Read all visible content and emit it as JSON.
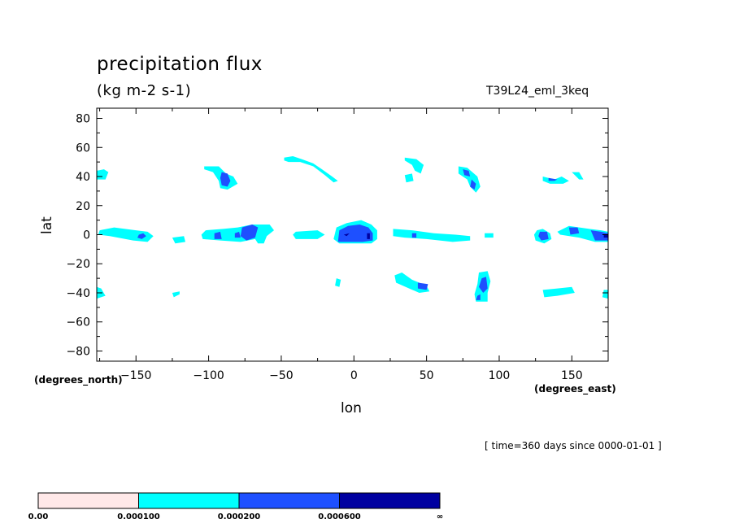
{
  "chart_data": {
    "type": "heatmap",
    "title": "precipitation flux",
    "units": "(kg m-2 s-1)",
    "experiment": "T39L24_eml_3keq",
    "xlabel": "lon",
    "ylabel": "lat",
    "x_unit": "(degrees_east)",
    "y_unit": "(degrees_north)",
    "time_text": "[ time=360 days since 0000-01-01 ]",
    "xlim": [
      -177,
      175
    ],
    "ylim": [
      -87,
      87
    ],
    "x_ticks": [
      -150,
      -100,
      -50,
      0,
      50,
      100,
      150
    ],
    "x_tick_labels": [
      "−150",
      "−100",
      "−50",
      "0",
      "50",
      "100",
      "150"
    ],
    "y_ticks": [
      80,
      60,
      40,
      20,
      0,
      -20,
      -40,
      -60,
      -80
    ],
    "y_tick_labels": [
      "80",
      "60",
      "40",
      "20",
      "0",
      "−20",
      "−40",
      "−60",
      "−80"
    ],
    "levels": [
      "0.00",
      "0.000100",
      "0.000200",
      "0.000600",
      "∞"
    ],
    "level_colors": [
      "#ffe8e8",
      "#00ffff",
      "#1e50ff",
      "#0000a0"
    ],
    "regions": [
      {
        "level": 1,
        "pts": [
          [
            -177,
            44
          ],
          [
            -172,
            45
          ],
          [
            -169,
            43
          ],
          [
            -171,
            38
          ],
          [
            -177,
            38
          ]
        ]
      },
      {
        "level": 1,
        "pts": [
          [
            -175,
            3
          ],
          [
            -165,
            5
          ],
          [
            -150,
            3
          ],
          [
            -142,
            2
          ],
          [
            -138,
            -1
          ],
          [
            -142,
            -5
          ],
          [
            -152,
            -4
          ],
          [
            -168,
            -1
          ],
          [
            -176,
            0
          ]
        ]
      },
      {
        "level": 2,
        "pts": [
          [
            -148,
            0
          ],
          [
            -145,
            1
          ],
          [
            -143,
            -1
          ],
          [
            -146,
            -3
          ],
          [
            -149,
            -2
          ]
        ]
      },
      {
        "level": 1,
        "pts": [
          [
            -125,
            -2
          ],
          [
            -117,
            -1
          ],
          [
            -116,
            -5
          ],
          [
            -123,
            -6
          ]
        ]
      },
      {
        "level": 1,
        "pts": [
          [
            -102,
            3
          ],
          [
            -90,
            4
          ],
          [
            -80,
            5
          ],
          [
            -70,
            7
          ],
          [
            -58,
            7
          ],
          [
            -55,
            3
          ],
          [
            -60,
            -1
          ],
          [
            -62,
            -6
          ],
          [
            -66,
            -6
          ],
          [
            -68,
            -3
          ],
          [
            -78,
            -5
          ],
          [
            -92,
            -4
          ],
          [
            -104,
            -3
          ],
          [
            -105,
            0
          ]
        ]
      },
      {
        "level": 2,
        "pts": [
          [
            -96,
            1
          ],
          [
            -92,
            2
          ],
          [
            -91,
            -3
          ],
          [
            -96,
            -3
          ]
        ]
      },
      {
        "level": 2,
        "pts": [
          [
            -82,
            1
          ],
          [
            -79,
            2
          ],
          [
            -78,
            -2
          ],
          [
            -82,
            -2
          ]
        ]
      },
      {
        "level": 2,
        "pts": [
          [
            -77,
            5
          ],
          [
            -70,
            7
          ],
          [
            -66,
            5
          ],
          [
            -68,
            -2
          ],
          [
            -74,
            -4
          ],
          [
            -78,
            -1
          ]
        ]
      },
      {
        "level": 1,
        "pts": [
          [
            -40,
            2
          ],
          [
            -25,
            3
          ],
          [
            -20,
            0
          ],
          [
            -25,
            -3
          ],
          [
            -40,
            -3
          ],
          [
            -42,
            0
          ]
        ]
      },
      {
        "level": 1,
        "pts": [
          [
            -103,
            47
          ],
          [
            -93,
            47
          ],
          [
            -88,
            42
          ],
          [
            -83,
            40
          ],
          [
            -80,
            35
          ],
          [
            -87,
            31
          ],
          [
            -92,
            32
          ],
          [
            -93,
            37
          ],
          [
            -97,
            43
          ],
          [
            -103,
            45
          ]
        ]
      },
      {
        "level": 2,
        "pts": [
          [
            -91,
            43
          ],
          [
            -87,
            42
          ],
          [
            -85,
            37
          ],
          [
            -87,
            33
          ],
          [
            -91,
            34
          ],
          [
            -92,
            39
          ]
        ]
      },
      {
        "level": 1,
        "pts": [
          [
            -48,
            53
          ],
          [
            -42,
            54
          ],
          [
            -36,
            52
          ],
          [
            -28,
            49
          ],
          [
            -22,
            45
          ],
          [
            -15,
            40
          ],
          [
            -11,
            37
          ],
          [
            -14,
            36
          ],
          [
            -20,
            41
          ],
          [
            -28,
            47
          ],
          [
            -37,
            50
          ],
          [
            -45,
            50
          ],
          [
            -48,
            51
          ]
        ]
      },
      {
        "level": 1,
        "pts": [
          [
            -12,
            -30
          ],
          [
            -9,
            -31
          ],
          [
            -10,
            -36
          ],
          [
            -13,
            -35
          ]
        ]
      },
      {
        "level": 1,
        "pts": [
          [
            -12,
            5
          ],
          [
            -5,
            8
          ],
          [
            5,
            10
          ],
          [
            12,
            7
          ],
          [
            16,
            3
          ],
          [
            16,
            -3
          ],
          [
            12,
            -6
          ],
          [
            0,
            -6
          ],
          [
            -10,
            -6
          ],
          [
            -14,
            -3
          ]
        ]
      },
      {
        "level": 2,
        "pts": [
          [
            -10,
            3
          ],
          [
            -4,
            6
          ],
          [
            4,
            7
          ],
          [
            10,
            5
          ],
          [
            13,
            1
          ],
          [
            13,
            -4
          ],
          [
            6,
            -5
          ],
          [
            -4,
            -5
          ],
          [
            -11,
            -5
          ]
        ]
      },
      {
        "level": 3,
        "pts": [
          [
            -7,
            0
          ],
          [
            -3,
            1
          ],
          [
            -5,
            -1
          ]
        ]
      },
      {
        "level": 3,
        "pts": [
          [
            9,
            1
          ],
          [
            11,
            1
          ],
          [
            11,
            -3
          ],
          [
            9,
            -3
          ]
        ]
      },
      {
        "level": 1,
        "pts": [
          [
            27,
            4
          ],
          [
            40,
            3
          ],
          [
            55,
            1
          ],
          [
            70,
            0
          ],
          [
            80,
            -1
          ],
          [
            80,
            -4
          ],
          [
            68,
            -5
          ],
          [
            50,
            -3
          ],
          [
            35,
            -2
          ],
          [
            27,
            -1
          ]
        ]
      },
      {
        "level": 2,
        "pts": [
          [
            40,
            1
          ],
          [
            43,
            1
          ],
          [
            43,
            -2
          ],
          [
            40,
            -2
          ]
        ]
      },
      {
        "level": 1,
        "pts": [
          [
            90,
            1
          ],
          [
            96,
            1
          ],
          [
            96,
            -2
          ],
          [
            90,
            -2
          ]
        ]
      },
      {
        "level": 1,
        "pts": [
          [
            126,
            3
          ],
          [
            130,
            4
          ],
          [
            135,
            1
          ],
          [
            136,
            -3
          ],
          [
            131,
            -6
          ],
          [
            125,
            -4
          ],
          [
            124,
            0
          ]
        ]
      },
      {
        "level": 2,
        "pts": [
          [
            128,
            2
          ],
          [
            133,
            2
          ],
          [
            134,
            -3
          ],
          [
            129,
            -4
          ],
          [
            127,
            -1
          ]
        ]
      },
      {
        "level": 1,
        "pts": [
          [
            140,
            2
          ],
          [
            148,
            6
          ],
          [
            162,
            4
          ],
          [
            170,
            3
          ],
          [
            175,
            2
          ],
          [
            175,
            -5
          ],
          [
            166,
            -5
          ],
          [
            155,
            -2
          ],
          [
            142,
            0
          ]
        ]
      },
      {
        "level": 2,
        "pts": [
          [
            148,
            5
          ],
          [
            154,
            5
          ],
          [
            155,
            1
          ],
          [
            149,
            0
          ]
        ]
      },
      {
        "level": 2,
        "pts": [
          [
            163,
            3
          ],
          [
            170,
            2
          ],
          [
            175,
            1
          ],
          [
            175,
            -4
          ],
          [
            166,
            -4
          ]
        ]
      },
      {
        "level": 3,
        "pts": [
          [
            172,
            0
          ],
          [
            175,
            0
          ],
          [
            175,
            -2
          ],
          [
            172,
            -2
          ]
        ]
      },
      {
        "level": 1,
        "pts": [
          [
            35,
            53
          ],
          [
            43,
            52
          ],
          [
            48,
            48
          ],
          [
            46,
            42
          ],
          [
            42,
            44
          ],
          [
            40,
            48
          ],
          [
            35,
            51
          ]
        ]
      },
      {
        "level": 1,
        "pts": [
          [
            35,
            41
          ],
          [
            40,
            42
          ],
          [
            41,
            37
          ],
          [
            36,
            36
          ]
        ]
      },
      {
        "level": 1,
        "pts": [
          [
            72,
            47
          ],
          [
            78,
            46
          ],
          [
            85,
            40
          ],
          [
            87,
            33
          ],
          [
            84,
            29
          ],
          [
            80,
            33
          ],
          [
            78,
            38
          ],
          [
            72,
            42
          ]
        ]
      },
      {
        "level": 2,
        "pts": [
          [
            75,
            45
          ],
          [
            79,
            44
          ],
          [
            80,
            40
          ],
          [
            76,
            41
          ]
        ]
      },
      {
        "level": 2,
        "pts": [
          [
            81,
            38
          ],
          [
            84,
            35
          ],
          [
            83,
            31
          ],
          [
            80,
            33
          ]
        ]
      },
      {
        "level": 1,
        "pts": [
          [
            130,
            40
          ],
          [
            138,
            38
          ],
          [
            143,
            40
          ],
          [
            148,
            37
          ],
          [
            144,
            35
          ],
          [
            135,
            35
          ],
          [
            130,
            37
          ]
        ]
      },
      {
        "level": 1,
        "pts": [
          [
            150,
            43
          ],
          [
            155,
            43
          ],
          [
            158,
            38
          ],
          [
            155,
            38
          ]
        ]
      },
      {
        "level": 2,
        "pts": [
          [
            134,
            39
          ],
          [
            140,
            38
          ],
          [
            138,
            37
          ],
          [
            134,
            37
          ]
        ]
      },
      {
        "level": 1,
        "pts": [
          [
            28,
            -28
          ],
          [
            33,
            -26
          ],
          [
            40,
            -31
          ],
          [
            50,
            -35
          ],
          [
            52,
            -39
          ],
          [
            45,
            -40
          ],
          [
            38,
            -37
          ],
          [
            29,
            -33
          ]
        ]
      },
      {
        "level": 2,
        "pts": [
          [
            44,
            -33
          ],
          [
            51,
            -34
          ],
          [
            50,
            -38
          ],
          [
            44,
            -37
          ]
        ]
      },
      {
        "level": 1,
        "pts": [
          [
            86,
            -26
          ],
          [
            92,
            -25
          ],
          [
            94,
            -32
          ],
          [
            92,
            -40
          ],
          [
            92,
            -46
          ],
          [
            84,
            -46
          ],
          [
            83,
            -41
          ],
          [
            85,
            -34
          ]
        ]
      },
      {
        "level": 2,
        "pts": [
          [
            88,
            -30
          ],
          [
            91,
            -29
          ],
          [
            92,
            -37
          ],
          [
            89,
            -40
          ],
          [
            86,
            -36
          ]
        ]
      },
      {
        "level": 2,
        "pts": [
          [
            85,
            -42
          ],
          [
            87,
            -41
          ],
          [
            87,
            -45
          ],
          [
            84,
            -45
          ]
        ]
      },
      {
        "level": 1,
        "pts": [
          [
            130,
            -38
          ],
          [
            140,
            -37
          ],
          [
            150,
            -36
          ],
          [
            152,
            -40
          ],
          [
            140,
            -42
          ],
          [
            131,
            -43
          ]
        ]
      },
      {
        "level": 1,
        "pts": [
          [
            -177,
            -36
          ],
          [
            -174,
            -37
          ],
          [
            -171,
            -42
          ],
          [
            -177,
            -44
          ]
        ]
      },
      {
        "level": 1,
        "pts": [
          [
            -125,
            -40
          ],
          [
            -120,
            -39
          ],
          [
            -120,
            -41
          ],
          [
            -124,
            -43
          ]
        ]
      },
      {
        "level": 1,
        "pts": [
          [
            172,
            -38
          ],
          [
            175,
            -38
          ],
          [
            175,
            -44
          ],
          [
            171,
            -43
          ]
        ]
      }
    ]
  }
}
